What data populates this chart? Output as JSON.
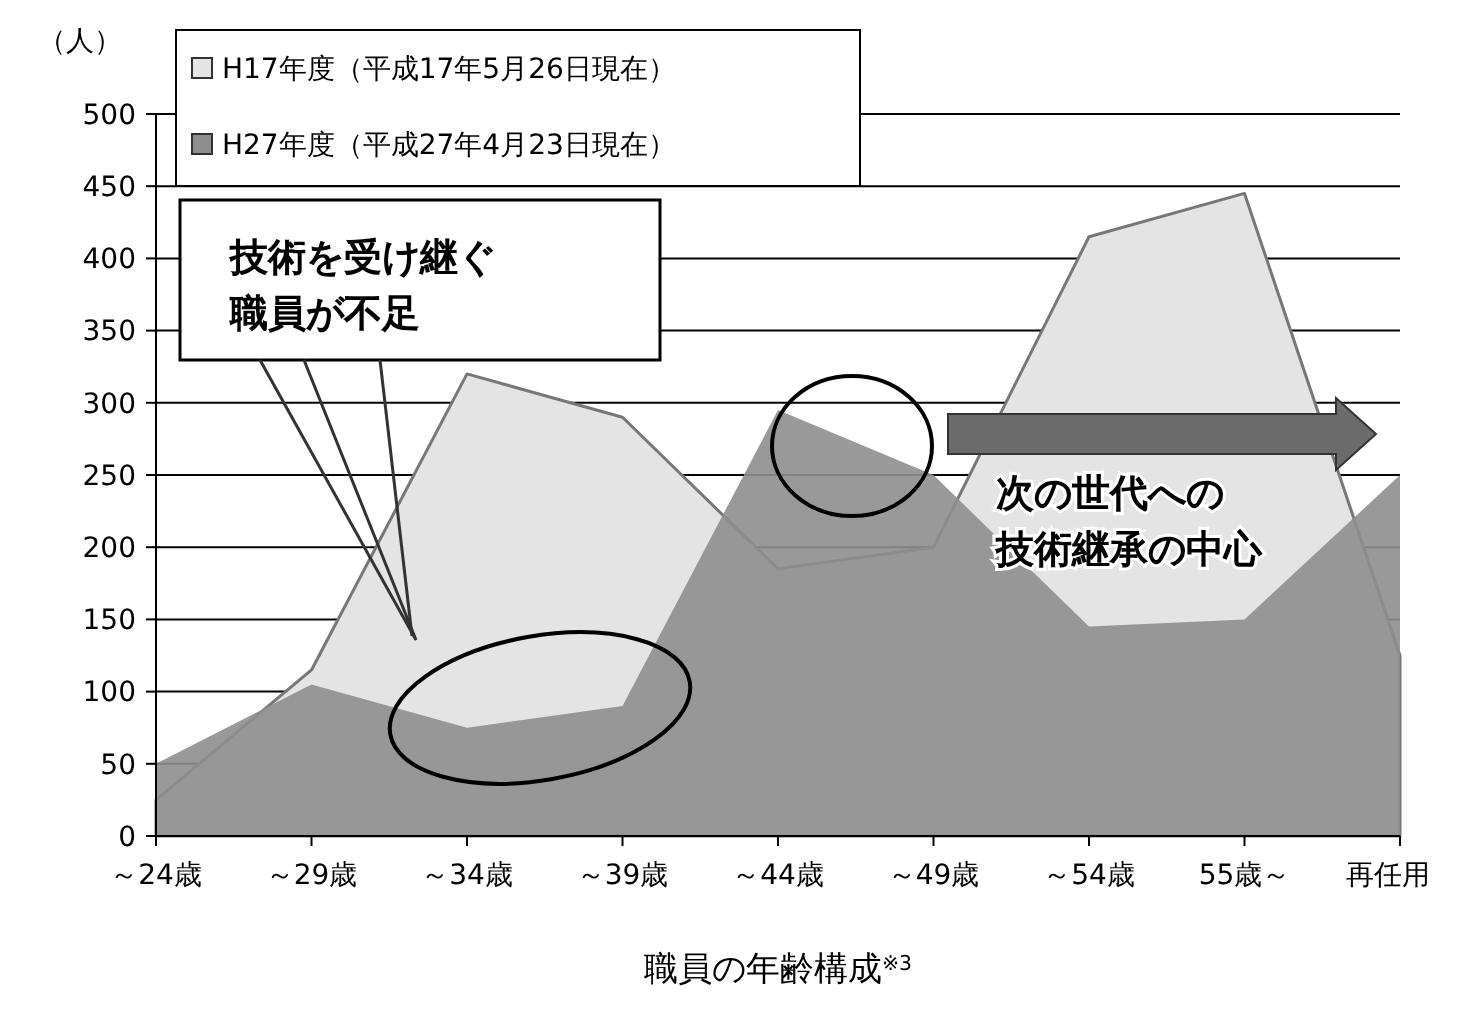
{
  "chart_data": {
    "type": "area",
    "title": "職員の年齢構成$^{※3}$",
    "ylabel": "（人）",
    "categories": [
      "～24歳",
      "～29歳",
      "～34歳",
      "～39歳",
      "～44歳",
      "～49歳",
      "～54歳",
      "55歳～",
      "再任用"
    ],
    "series": [
      {
        "name": "H17年度（平成17年5月26日現在）",
        "color": "#e4e4e4",
        "values": [
          25,
          115,
          320,
          290,
          185,
          200,
          415,
          445,
          125
        ]
      },
      {
        "name": "H27年度（平成27年4月23日現在）",
        "color": "#8e8e8e",
        "values": [
          50,
          105,
          75,
          90,
          295,
          250,
          145,
          150,
          250
        ]
      }
    ],
    "ylim": [
      0,
      500
    ],
    "yticks": [
      0,
      50,
      100,
      150,
      200,
      250,
      300,
      350,
      400,
      450,
      500
    ],
    "grid": "y",
    "legend": "top left",
    "annotations": [
      "技術を受け継ぐ職員が不足",
      "次の世代への技術継承の中心"
    ]
  }
}
